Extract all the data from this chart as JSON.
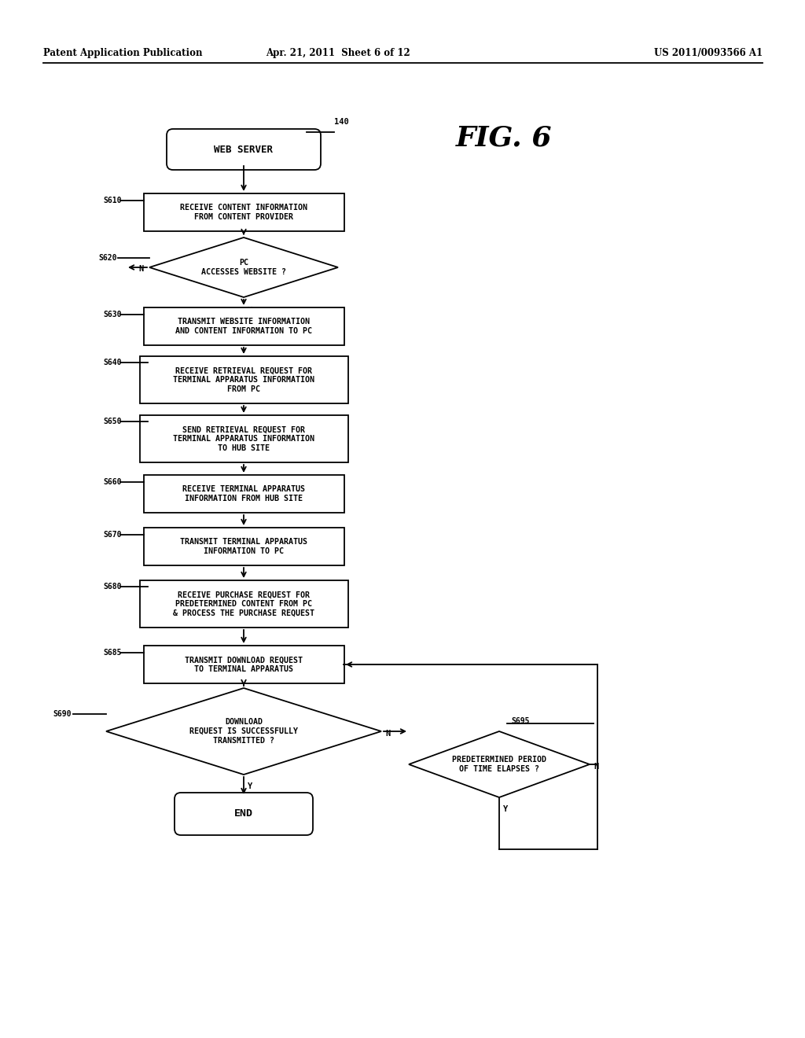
{
  "bg_color": "#ffffff",
  "header_left": "Patent Application Publication",
  "header_center": "Apr. 21, 2011  Sheet 6 of 12",
  "header_right": "US 2011/0093566 A1",
  "fig_label": "FIG. 6",
  "node_140": "WEB SERVER",
  "node_140_ref": "140",
  "s610_label": "S610",
  "s610_text": "RECEIVE CONTENT INFORMATION\nFROM CONTENT PROVIDER",
  "s620_label": "S620",
  "s620_text": "PC\nACCESSES WEBSITE ?",
  "s630_label": "S630",
  "s630_text": "TRANSMIT WEBSITE INFORMATION\nAND CONTENT INFORMATION TO PC",
  "s640_label": "S640",
  "s640_text": "RECEIVE RETRIEVAL REQUEST FOR\nTERMINAL APPARATUS INFORMATION\nFROM PC",
  "s650_label": "S650",
  "s650_text": "SEND RETRIEVAL REQUEST FOR\nTERMINAL APPARATUS INFORMATION\nTO HUB SITE",
  "s660_label": "S660",
  "s660_text": "RECEIVE TERMINAL APPARATUS\nINFORMATION FROM HUB SITE",
  "s670_label": "S670",
  "s670_text": "TRANSMIT TERMINAL APPARATUS\nINFORMATION TO PC",
  "s680_label": "S680",
  "s680_text": "RECEIVE PURCHASE REQUEST FOR\nPREDETERMINED CONTENT FROM PC\n& PROCESS THE PURCHASE REQUEST",
  "s685_label": "S685",
  "s685_text": "TRANSMIT DOWNLOAD REQUEST\nTO TERMINAL APPARATUS",
  "s690_label": "S690",
  "s690_text": "DOWNLOAD\nREQUEST IS SUCCESSFULLY\nTRANSMITTED ?",
  "s695_label": "S695",
  "s695_text": "PREDETERMINED PERIOD\nOF TIME ELAPSES ?",
  "end_text": "END"
}
